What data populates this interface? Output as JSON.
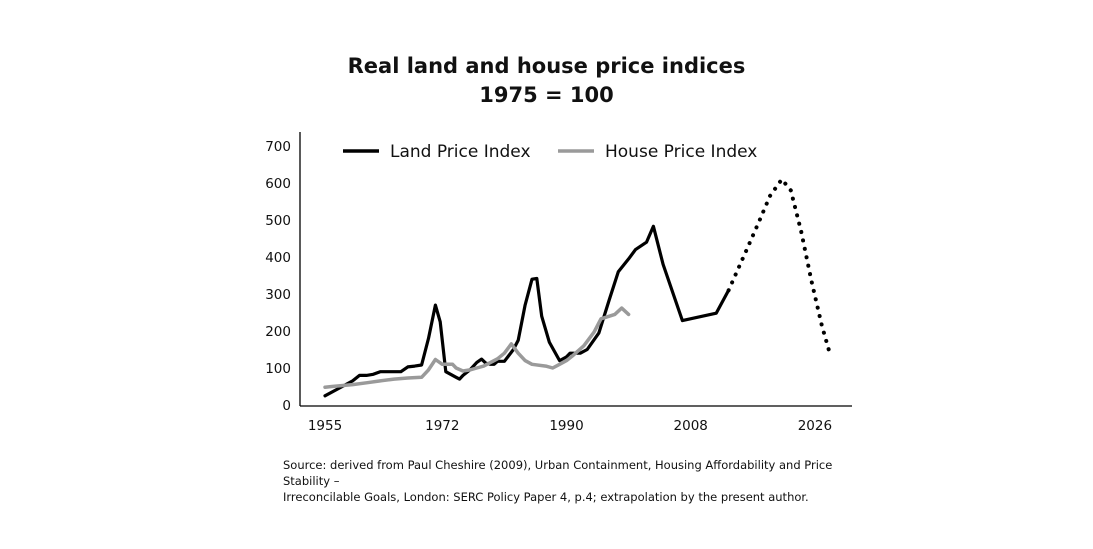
{
  "chart_data": {
    "type": "line",
    "title": "Real land and house price indices",
    "subtitle": "1975 = 100",
    "xlabel": "",
    "ylabel": "",
    "xlim": [
      1955,
      2035
    ],
    "ylim": [
      0,
      700
    ],
    "x_ticks": [
      1955,
      1972,
      1990,
      2008,
      2026
    ],
    "y_ticks": [
      0,
      100,
      200,
      300,
      400,
      500,
      600,
      700
    ],
    "legend_position": "top",
    "series": [
      {
        "name": "Land Price Index",
        "color": "#000000",
        "style": "solid",
        "points": [
          [
            1955,
            25
          ],
          [
            1957,
            45
          ],
          [
            1959,
            65
          ],
          [
            1960,
            80
          ],
          [
            1961,
            80
          ],
          [
            1962,
            83
          ],
          [
            1963,
            90
          ],
          [
            1964,
            90
          ],
          [
            1965,
            90
          ],
          [
            1966,
            90
          ],
          [
            1967,
            103
          ],
          [
            1968,
            105
          ],
          [
            1969,
            108
          ],
          [
            1970,
            180
          ],
          [
            1971,
            270
          ],
          [
            1971.7,
            225
          ],
          [
            1972.5,
            90
          ],
          [
            1974,
            75
          ],
          [
            1974.5,
            70
          ],
          [
            1975,
            80
          ],
          [
            1976,
            95
          ],
          [
            1977,
            115
          ],
          [
            1977.7,
            124
          ],
          [
            1978.3,
            113
          ],
          [
            1979,
            110
          ],
          [
            1979.5,
            110
          ],
          [
            1980,
            118
          ],
          [
            1981,
            118
          ],
          [
            1982.3,
            150
          ],
          [
            1983,
            175
          ],
          [
            1984,
            270
          ],
          [
            1985,
            340
          ],
          [
            1985.7,
            342
          ],
          [
            1986.4,
            240
          ],
          [
            1987.5,
            170
          ],
          [
            1989,
            120
          ],
          [
            1990,
            130
          ],
          [
            1990.5,
            140
          ],
          [
            1992,
            140
          ],
          [
            1993,
            150
          ],
          [
            1994.7,
            195
          ],
          [
            1996.2,
            285
          ],
          [
            1997.5,
            360
          ],
          [
            1999,
            395
          ],
          [
            2000,
            420
          ],
          [
            2001.6,
            440
          ],
          [
            2002.6,
            483
          ],
          [
            2004,
            380
          ],
          [
            2006.8,
            228
          ],
          [
            2011.7,
            248
          ],
          [
            2013.5,
            310
          ]
        ]
      },
      {
        "name": "House Price Index",
        "color": "#9a9a9a",
        "style": "solid",
        "points": [
          [
            1955,
            48
          ],
          [
            1956,
            50
          ],
          [
            1959,
            55
          ],
          [
            1961,
            60
          ],
          [
            1963,
            65
          ],
          [
            1965,
            70
          ],
          [
            1967,
            73
          ],
          [
            1969,
            75
          ],
          [
            1970,
            95
          ],
          [
            1971,
            123
          ],
          [
            1972,
            110
          ],
          [
            1973.5,
            110
          ],
          [
            1974,
            100
          ],
          [
            1975,
            92
          ],
          [
            1976,
            95
          ],
          [
            1977,
            100
          ],
          [
            1978,
            105
          ],
          [
            1979,
            115
          ],
          [
            1980,
            125
          ],
          [
            1981,
            140
          ],
          [
            1982,
            165
          ],
          [
            1983,
            140
          ],
          [
            1984,
            120
          ],
          [
            1985,
            110
          ],
          [
            1987,
            105
          ],
          [
            1988,
            100
          ],
          [
            1989,
            110
          ],
          [
            1990,
            120
          ],
          [
            1991,
            135
          ],
          [
            1992.5,
            160
          ],
          [
            1994,
            197
          ],
          [
            1995,
            233
          ],
          [
            1997,
            245
          ],
          [
            1998,
            262
          ],
          [
            1999,
            245
          ]
        ]
      },
      {
        "name": "",
        "color": "#000000",
        "style": "dotted",
        "points": [
          [
            2013.5,
            310
          ],
          [
            2016,
            415
          ],
          [
            2018,
            500
          ],
          [
            2019.5,
            565
          ],
          [
            2021.2,
            610
          ],
          [
            2022.5,
            580
          ],
          [
            2024,
            470
          ],
          [
            2025.5,
            335
          ],
          [
            2027,
            215
          ],
          [
            2028,
            150
          ]
        ]
      }
    ]
  },
  "source_line1": "Source: derived from Paul Cheshire (2009), Urban Containment, Housing Affordability and Price Stability –",
  "source_line2": "Irreconcilable Goals, London: SERC Policy Paper 4, p.4; extrapolation by the present author."
}
